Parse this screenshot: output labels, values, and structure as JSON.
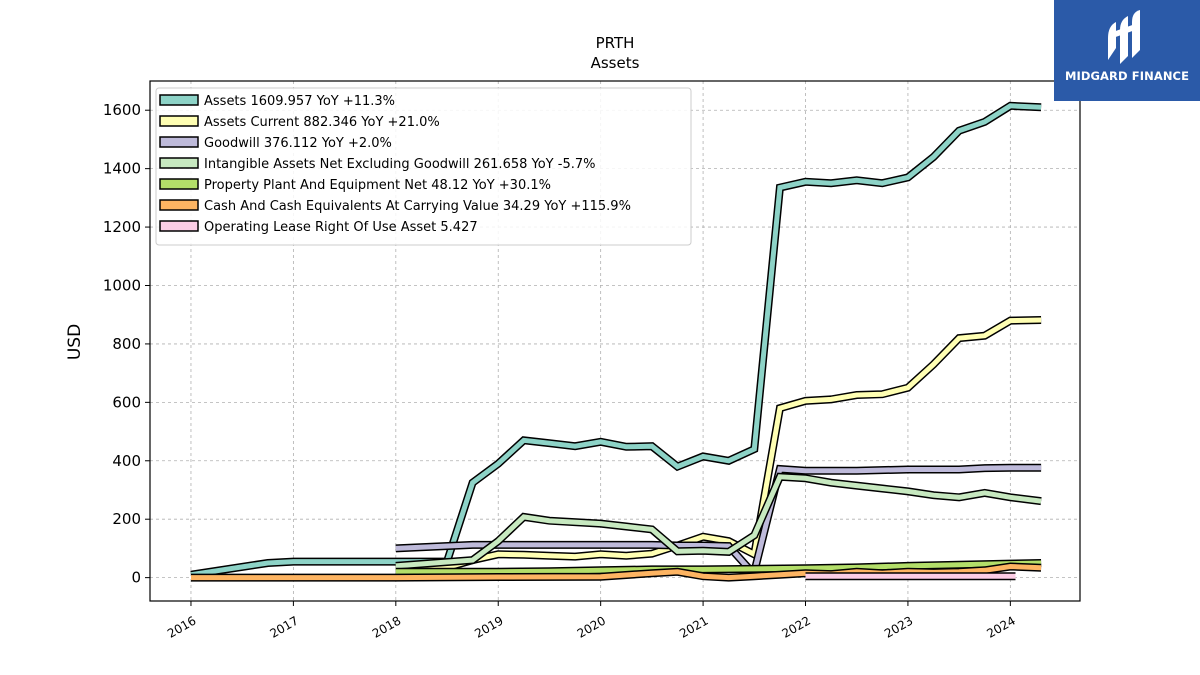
{
  "chart_data": {
    "type": "line",
    "title": "PRTH",
    "subtitle": "Assets",
    "ylabel": "USD",
    "xlabel": "",
    "xlim": [
      2015.6,
      2024.68
    ],
    "ylim": [
      -80,
      1700
    ],
    "x_ticks": [
      2016,
      2017,
      2018,
      2019,
      2020,
      2021,
      2022,
      2023,
      2024
    ],
    "y_ticks": [
      0,
      200,
      400,
      600,
      800,
      1000,
      1200,
      1400,
      1600
    ],
    "grid": true,
    "legend_position": "top-left",
    "series": [
      {
        "name": "Assets",
        "legend": "Assets  1609.957 YoY +11.3%",
        "color": "#8dd3c7",
        "x": [
          2016.0,
          2016.75,
          2017.0,
          2017.75,
          2018.0,
          2018.5,
          2018.75,
          2019.0,
          2019.25,
          2019.5,
          2019.75,
          2020.0,
          2020.25,
          2020.5,
          2020.75,
          2021.0,
          2021.25,
          2021.5,
          2021.75,
          2022.0,
          2022.25,
          2022.5,
          2022.75,
          2023.0,
          2023.25,
          2023.5,
          2023.75,
          2024.0,
          2024.3
        ],
        "y": [
          10,
          50,
          55,
          55,
          55,
          55,
          325,
          390,
          470,
          460,
          450,
          465,
          448,
          450,
          380,
          415,
          400,
          440,
          1335,
          1355,
          1350,
          1360,
          1350,
          1370,
          1440,
          1530,
          1560,
          1615,
          1610
        ]
      },
      {
        "name": "Assets Current",
        "legend": "Assets Current  882.346 YoY +21.0%",
        "color": "#ffffb3",
        "x": [
          2018.0,
          2018.5,
          2018.75,
          2019.0,
          2019.25,
          2019.5,
          2019.75,
          2020.0,
          2020.25,
          2020.5,
          2020.75,
          2021.0,
          2021.25,
          2021.5,
          2021.75,
          2022.0,
          2022.25,
          2022.5,
          2022.75,
          2023.0,
          2023.25,
          2023.5,
          2023.75,
          2024.0,
          2024.3
        ],
        "y": [
          30,
          35,
          60,
          80,
          78,
          75,
          72,
          80,
          75,
          82,
          110,
          140,
          125,
          80,
          580,
          605,
          610,
          625,
          628,
          650,
          730,
          820,
          828,
          880,
          882
        ]
      },
      {
        "name": "Goodwill",
        "legend": "Goodwill  376.112 YoY +2.0%",
        "color": "#bebada",
        "x": [
          2018.0,
          2018.75,
          2019.0,
          2019.5,
          2020.0,
          2020.5,
          2020.75,
          2021.0,
          2021.25,
          2021.45,
          2021.5,
          2021.75,
          2022.0,
          2022.5,
          2023.0,
          2023.5,
          2023.75,
          2024.0,
          2024.3
        ],
        "y": [
          100,
          112,
          112,
          112,
          112,
          112,
          110,
          110,
          108,
          30,
          20,
          372,
          366,
          366,
          370,
          370,
          375,
          376,
          376
        ]
      },
      {
        "name": "Intangible Assets Net Excluding Goodwill",
        "legend": "Intangible Assets Net Excluding Goodwill  261.658 YoY -5.7%",
        "color": "#c7e9c0",
        "x": [
          2018.0,
          2018.75,
          2019.0,
          2019.25,
          2019.5,
          2020.0,
          2020.25,
          2020.5,
          2020.75,
          2021.0,
          2021.25,
          2021.5,
          2021.75,
          2022.0,
          2022.25,
          2022.5,
          2022.75,
          2023.0,
          2023.25,
          2023.5,
          2023.75,
          2024.0,
          2024.3
        ],
        "y": [
          40,
          60,
          125,
          208,
          195,
          185,
          175,
          165,
          90,
          92,
          88,
          145,
          345,
          340,
          325,
          315,
          305,
          295,
          282,
          275,
          290,
          275,
          262
        ]
      },
      {
        "name": "Property Plant And Equipment Net",
        "legend": "Property Plant And Equipment Net  48.12 YoY +30.1%",
        "color": "#b3de69",
        "x": [
          2018.0,
          2019.0,
          2019.5,
          2020.0,
          2020.5,
          2021.0,
          2021.5,
          2022.0,
          2022.5,
          2023.0,
          2023.5,
          2024.0,
          2024.3
        ],
        "y": [
          20,
          20,
          22,
          25,
          28,
          28,
          30,
          32,
          35,
          40,
          44,
          48,
          50
        ]
      },
      {
        "name": "Cash And Cash Equivalents At Carrying Value",
        "legend": "Cash And Cash Equivalents At Carrying Value  34.29 YoY +115.9%",
        "color": "#fdb462",
        "x": [
          2016.0,
          2017.0,
          2018.0,
          2019.0,
          2020.0,
          2020.5,
          2020.75,
          2021.0,
          2021.25,
          2021.5,
          2021.75,
          2022.0,
          2022.25,
          2022.5,
          2022.75,
          2023.0,
          2023.25,
          2023.5,
          2023.75,
          2024.0,
          2024.3
        ],
        "y": [
          0,
          0,
          0,
          2,
          3,
          15,
          20,
          5,
          0,
          5,
          10,
          15,
          12,
          20,
          15,
          20,
          18,
          20,
          25,
          38,
          34
        ]
      },
      {
        "name": "Operating Lease Right Of Use Asset",
        "legend": "Operating Lease Right Of Use Asset  5.427",
        "color": "#fccde5",
        "x": [
          2022.0,
          2024.05
        ],
        "y": [
          5,
          5
        ]
      }
    ]
  },
  "logo": {
    "text": "MIDGARD FINANCE",
    "color": "#2b5aa8"
  }
}
